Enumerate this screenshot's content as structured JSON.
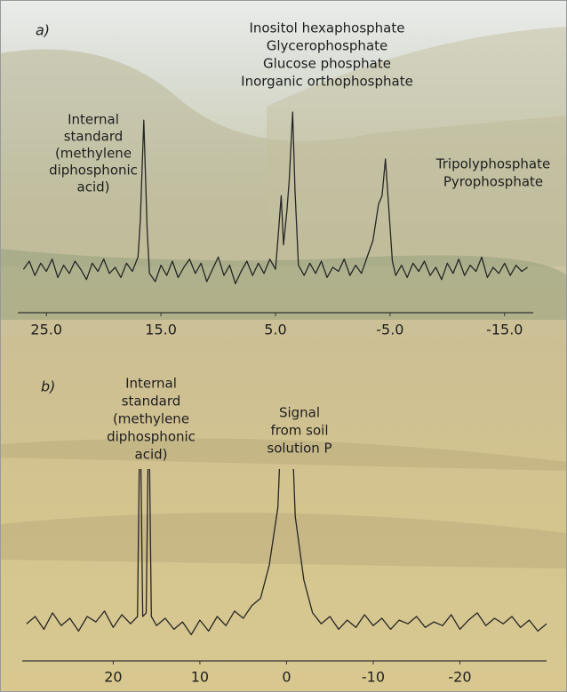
{
  "chart_data": [
    {
      "type": "line",
      "panel_label": "a)",
      "annotations": [
        {
          "lines": [
            "Internal",
            "standard",
            "(methylene",
            "diphosphonic",
            "acid)"
          ]
        },
        {
          "lines": [
            "Inositol hexaphosphate",
            "Glycerophosphate",
            "Glucose phosphate",
            "Inorganic orthophosphate"
          ]
        },
        {
          "lines": [
            "Tripolyphosphate",
            "Pyrophosphate"
          ]
        }
      ],
      "x": [
        27,
        26.5,
        26,
        25.5,
        25,
        24.5,
        24,
        23.5,
        23,
        22.5,
        22,
        21.5,
        21,
        20.5,
        20,
        19.5,
        19,
        18.5,
        18,
        17.5,
        17,
        16.8,
        16.5,
        16.2,
        16,
        15.5,
        15,
        14.5,
        14,
        13.5,
        13,
        12.5,
        12,
        11.5,
        11,
        10.5,
        10,
        9.5,
        9,
        8.5,
        8,
        7.5,
        7,
        6.5,
        6,
        5.5,
        5,
        4.8,
        4.5,
        4.3,
        4,
        3.8,
        3.5,
        3.3,
        3,
        2.5,
        2,
        1.5,
        1,
        0.5,
        0,
        -0.5,
        -1,
        -1.5,
        -2,
        -2.5,
        -3,
        -3.5,
        -4,
        -4.3,
        -4.6,
        -4.9,
        -5.2,
        -5.5,
        -6,
        -6.5,
        -7,
        -7.5,
        -8,
        -8.5,
        -9,
        -9.5,
        -10,
        -10.5,
        -11,
        -11.5,
        -12,
        -12.5,
        -13,
        -13.5,
        -14,
        -14.5,
        -15,
        -15.5,
        -16,
        -16.5,
        -17
      ],
      "series": [
        {
          "color": "#262626",
          "values": [
            16,
            20,
            13,
            19,
            15,
            21,
            12,
            18,
            14,
            20,
            16,
            11,
            19,
            15,
            21,
            14,
            17,
            12,
            19,
            15,
            22,
            40,
            89,
            35,
            14,
            10,
            18,
            13,
            20,
            12,
            17,
            21,
            14,
            19,
            10,
            16,
            22,
            13,
            18,
            9,
            15,
            20,
            13,
            19,
            14,
            21,
            16,
            30,
            52,
            28,
            45,
            60,
            93,
            55,
            18,
            13,
            19,
            14,
            20,
            12,
            17,
            15,
            21,
            13,
            18,
            14,
            22,
            30,
            48,
            52,
            70,
            45,
            20,
            13,
            18,
            12,
            19,
            15,
            20,
            13,
            17,
            11,
            19,
            14,
            21,
            13,
            18,
            15,
            22,
            12,
            17,
            14,
            19,
            13,
            18,
            15,
            17
          ]
        }
      ],
      "xlim": [
        27.5,
        -17.5
      ],
      "ylim": [
        0,
        100
      ],
      "xticks": [
        {
          "value": 25,
          "label": "25.0"
        },
        {
          "value": 15,
          "label": "15.0"
        },
        {
          "value": 5,
          "label": "5.0"
        },
        {
          "value": -5,
          "label": "-5.0"
        },
        {
          "value": -15,
          "label": "-15.0"
        }
      ]
    },
    {
      "type": "line",
      "panel_label": "b)",
      "annotations": [
        {
          "lines": [
            "Internal",
            "standard",
            "(methylene",
            "diphosphonic",
            "acid)"
          ]
        },
        {
          "lines": [
            "Signal",
            "from soil",
            "solution P"
          ]
        }
      ],
      "x": [
        30,
        29,
        28,
        27,
        26,
        25,
        24,
        23,
        22,
        21,
        20,
        19,
        18,
        17.2,
        16.9,
        16.6,
        16.2,
        15.9,
        15.6,
        15,
        14,
        13,
        12,
        11,
        10,
        9,
        8,
        7,
        6,
        5,
        4,
        3,
        2,
        1,
        0.5,
        -0.5,
        -1,
        -2,
        -3,
        -4,
        -5,
        -6,
        -7,
        -8,
        -9,
        -10,
        -11,
        -12,
        -13,
        -14,
        -15,
        -16,
        -17,
        -18,
        -19,
        -20,
        -21,
        -22,
        -23,
        -24,
        -25,
        -26,
        -27,
        -28,
        -29,
        -30
      ],
      "series": [
        {
          "color": "#262626",
          "values": [
            16,
            20,
            13,
            22,
            15,
            19,
            12,
            20,
            17,
            23,
            14,
            21,
            16,
            20,
            140,
            20,
            22,
            140,
            20,
            15,
            19,
            13,
            17,
            10,
            18,
            12,
            20,
            15,
            23,
            19,
            26,
            30,
            48,
            80,
            140,
            140,
            75,
            40,
            22,
            16,
            20,
            13,
            18,
            14,
            21,
            15,
            19,
            13,
            18,
            16,
            20,
            14,
            17,
            15,
            21,
            13,
            18,
            22,
            15,
            19,
            16,
            20,
            14,
            18,
            12,
            16
          ]
        }
      ],
      "xlim": [
        30.5,
        -30
      ],
      "ylim": [
        0,
        100
      ],
      "xticks": [
        20,
        10,
        0,
        -10,
        -20
      ]
    }
  ]
}
